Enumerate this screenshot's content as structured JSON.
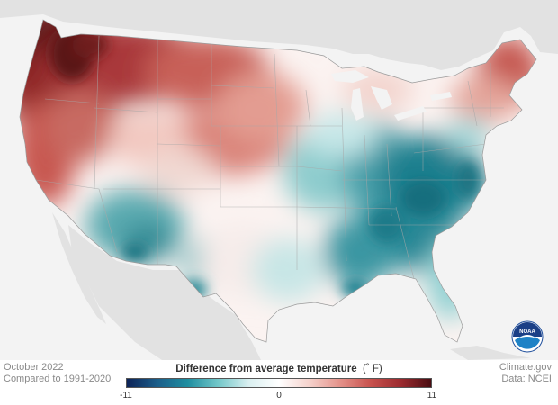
{
  "map": {
    "date": "October 2022",
    "baseline": "Compared to 1991-2020",
    "credit_source": "Climate.gov",
    "credit_data": "Data: NCEI",
    "logo_text": "NOAA"
  },
  "legend": {
    "title": "Difference from average temperature",
    "unit": "(˚ F)",
    "min": "-11",
    "mid": "0",
    "max": "11",
    "min_value": -11,
    "max_value": 11,
    "colors": [
      "#0d2357",
      "#1b5e8a",
      "#1f8ea0",
      "#72c7c9",
      "#d9eff0",
      "#ffffff",
      "#f5d2cc",
      "#e4928a",
      "#c8524e",
      "#9c2b2f",
      "#4a0d12"
    ]
  },
  "colors": {
    "land_background": "#e6e6e6",
    "ocean": "#f3f3f3",
    "state_lines": "#b5b5b5"
  }
}
